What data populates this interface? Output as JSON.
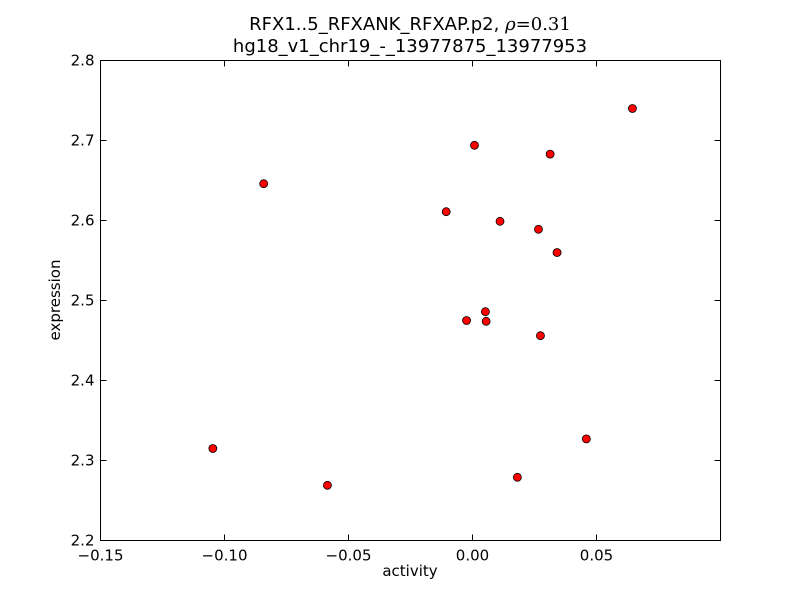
{
  "chart_data": {
    "type": "scatter",
    "title_line1_main": "RFX1..5_RFXANK_RFXAP.p2, ",
    "title_line1_rho_symbol": "ρ",
    "title_line1_rho_value": "=0.31",
    "title_line2": "hg18_v1_chr19_-_13977875_13977953",
    "xlabel": "activity",
    "ylabel": "expression",
    "xlim": [
      -0.15,
      0.1
    ],
    "ylim": [
      2.2,
      2.8
    ],
    "x_ticks": [
      -0.15,
      -0.1,
      -0.05,
      0.0,
      0.05
    ],
    "x_tick_labels": [
      "−0.15",
      "−0.10",
      "−0.05",
      "0.00",
      "0.05"
    ],
    "y_ticks": [
      2.2,
      2.3,
      2.4,
      2.5,
      2.6,
      2.7,
      2.8
    ],
    "y_tick_labels": [
      "2.2",
      "2.3",
      "2.4",
      "2.5",
      "2.6",
      "2.7",
      "2.8"
    ],
    "grid": false,
    "marker_color": "#ff0000",
    "points": [
      {
        "x": -0.1047,
        "y": 2.315
      },
      {
        "x": -0.0842,
        "y": 2.646
      },
      {
        "x": -0.0585,
        "y": 2.269
      },
      {
        "x": -0.0106,
        "y": 2.611
      },
      {
        "x": -0.0024,
        "y": 2.475
      },
      {
        "x": 0.0008,
        "y": 2.694
      },
      {
        "x": 0.0052,
        "y": 2.486
      },
      {
        "x": 0.0055,
        "y": 2.474
      },
      {
        "x": 0.0111,
        "y": 2.599
      },
      {
        "x": 0.0181,
        "y": 2.279
      },
      {
        "x": 0.0266,
        "y": 2.589
      },
      {
        "x": 0.0274,
        "y": 2.456
      },
      {
        "x": 0.0313,
        "y": 2.683
      },
      {
        "x": 0.0341,
        "y": 2.56
      },
      {
        "x": 0.0459,
        "y": 2.327
      },
      {
        "x": 0.0645,
        "y": 2.74
      }
    ]
  }
}
